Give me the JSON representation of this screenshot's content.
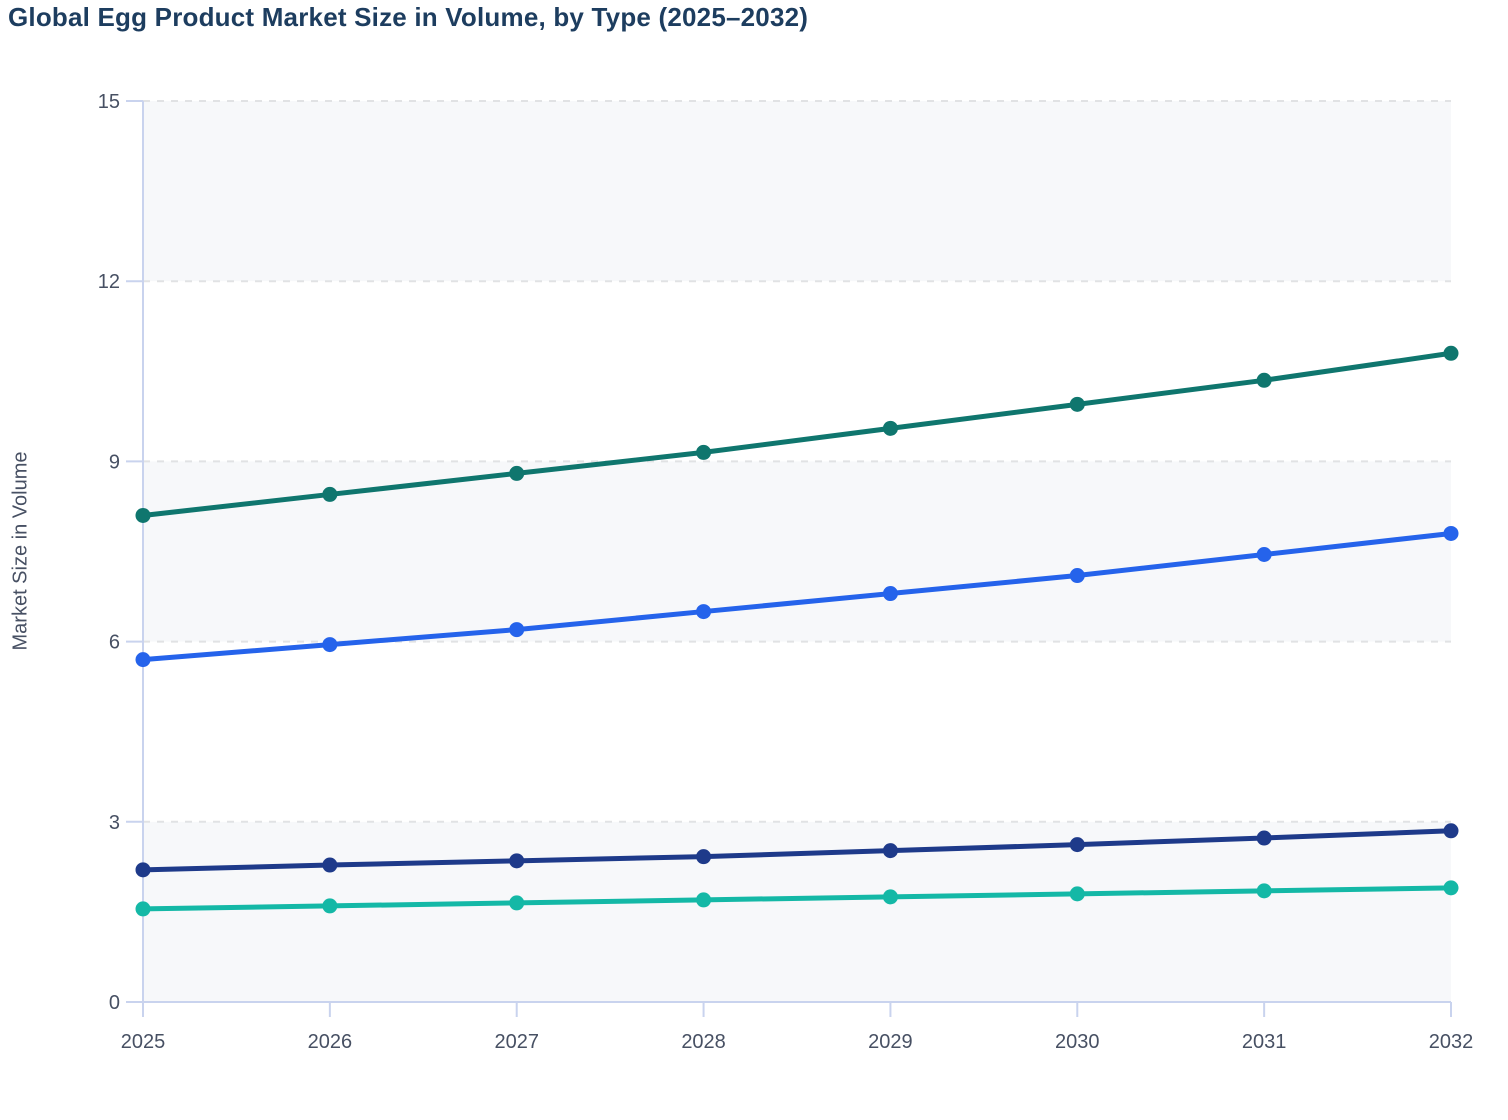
{
  "title": "Global Egg Product Market Size in Volume, by Type (2025–2032)",
  "chart_data": {
    "type": "line",
    "title": "Global Egg Product Market Size in Volume, by Type (2025–2032)",
    "xlabel": "",
    "ylabel": "Market Size in Volume",
    "categories": [
      "2025",
      "2026",
      "2027",
      "2028",
      "2029",
      "2030",
      "2031",
      "2032"
    ],
    "y_ticks": [
      0,
      3,
      6,
      9,
      12,
      15
    ],
    "ylim": [
      0,
      15
    ],
    "grid": "horizontal-dashed",
    "legend": "none",
    "band_fill_ranges": [
      [
        0,
        3
      ],
      [
        6,
        9
      ],
      [
        12,
        15
      ]
    ],
    "series": [
      {
        "name": "series-1-dark-teal",
        "color": "#0f766e",
        "values": [
          8.1,
          8.45,
          8.8,
          9.15,
          9.55,
          9.95,
          10.35,
          10.8
        ]
      },
      {
        "name": "series-2-blue",
        "color": "#2563eb",
        "values": [
          5.7,
          5.95,
          6.2,
          6.5,
          6.8,
          7.1,
          7.45,
          7.8
        ]
      },
      {
        "name": "series-3-navy",
        "color": "#1e3a8a",
        "values": [
          2.2,
          2.28,
          2.35,
          2.42,
          2.52,
          2.62,
          2.73,
          2.85
        ]
      },
      {
        "name": "series-4-teal",
        "color": "#14b8a6",
        "values": [
          1.55,
          1.6,
          1.65,
          1.7,
          1.75,
          1.8,
          1.85,
          1.9
        ]
      }
    ]
  },
  "colors": {
    "title": "#1d3d5f",
    "tick_label": "#475063",
    "axis_line": "#c9d3ee",
    "gridline": "#e1e2e4",
    "band": "#f7f8fa",
    "background": "#ffffff"
  }
}
